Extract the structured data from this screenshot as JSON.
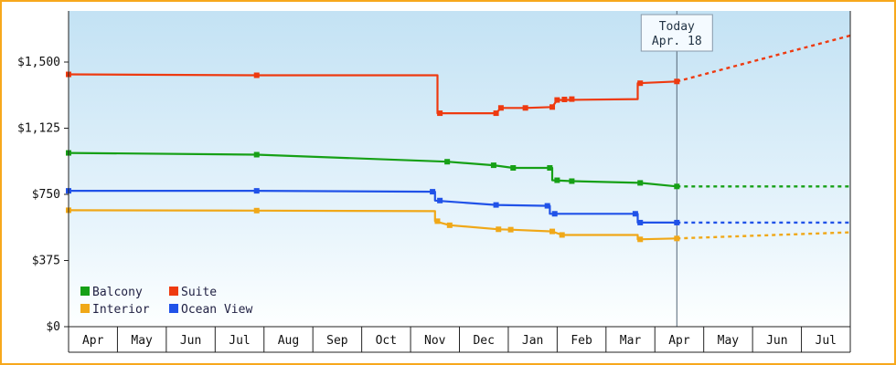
{
  "window": {
    "frame_border_color": "#f7a81c"
  },
  "chart_data": {
    "type": "line",
    "title": "",
    "xlabel": "",
    "ylabel": "",
    "x_months": [
      "Apr",
      "May",
      "Jun",
      "Jul",
      "Aug",
      "Sep",
      "Oct",
      "Nov",
      "Dec",
      "Jan",
      "Feb",
      "Mar",
      "Apr",
      "May",
      "Jun",
      "Jul"
    ],
    "x_month_count": 16,
    "y_ticks": [
      {
        "value": 0,
        "label": "$0"
      },
      {
        "value": 375,
        "label": "$375"
      },
      {
        "value": 750,
        "label": "$750"
      },
      {
        "value": 1125,
        "label": "$1,125"
      },
      {
        "value": 1500,
        "label": "$1,500"
      }
    ],
    "ylim": [
      0,
      1790
    ],
    "grid": false,
    "legend_position": "bottom-left-inside",
    "today_marker": {
      "line1": "Today",
      "line2": "Apr. 18",
      "month_position": 12.45
    },
    "series": [
      {
        "name": "Balcony",
        "color": "#16a016",
        "points": [
          [
            0,
            985
          ],
          [
            3.85,
            975
          ],
          [
            7.75,
            935
          ],
          [
            8.7,
            915
          ],
          [
            9.1,
            900
          ],
          [
            9.9,
            900
          ],
          [
            9.9,
            830
          ],
          [
            10.3,
            825
          ],
          [
            11.7,
            815
          ],
          [
            12.45,
            795
          ]
        ],
        "markers": [
          [
            0,
            985
          ],
          [
            3.85,
            975
          ],
          [
            7.75,
            935
          ],
          [
            8.7,
            915
          ],
          [
            9.1,
            900
          ],
          [
            9.85,
            900
          ],
          [
            10.0,
            830
          ],
          [
            10.3,
            825
          ],
          [
            11.7,
            815
          ],
          [
            12.45,
            795
          ]
        ],
        "projection": [
          [
            12.45,
            795
          ],
          [
            16,
            795
          ]
        ]
      },
      {
        "name": "Suite",
        "color": "#ee3a10",
        "points": [
          [
            0,
            1430
          ],
          [
            3.85,
            1425
          ],
          [
            7.55,
            1425
          ],
          [
            7.55,
            1210
          ],
          [
            8.75,
            1210
          ],
          [
            8.85,
            1240
          ],
          [
            9.35,
            1240
          ],
          [
            9.9,
            1245
          ],
          [
            10.0,
            1285
          ],
          [
            11.65,
            1290
          ],
          [
            11.65,
            1380
          ],
          [
            12.45,
            1390
          ]
        ],
        "markers": [
          [
            0,
            1430
          ],
          [
            3.85,
            1425
          ],
          [
            7.6,
            1210
          ],
          [
            8.75,
            1210
          ],
          [
            8.85,
            1240
          ],
          [
            9.35,
            1240
          ],
          [
            9.9,
            1245
          ],
          [
            10.0,
            1285
          ],
          [
            10.15,
            1288
          ],
          [
            10.3,
            1290
          ],
          [
            11.7,
            1380
          ],
          [
            12.45,
            1390
          ]
        ],
        "projection": [
          [
            12.45,
            1390
          ],
          [
            16,
            1650
          ]
        ]
      },
      {
        "name": "Interior",
        "color": "#f0a818",
        "points": [
          [
            0,
            660
          ],
          [
            3.85,
            658
          ],
          [
            7.5,
            655
          ],
          [
            7.5,
            598
          ],
          [
            7.8,
            575
          ],
          [
            8.8,
            552
          ],
          [
            9.05,
            550
          ],
          [
            9.9,
            540
          ],
          [
            10.1,
            520
          ],
          [
            11.65,
            520
          ],
          [
            11.65,
            495
          ],
          [
            12.45,
            500
          ]
        ],
        "markers": [
          [
            0,
            660
          ],
          [
            3.85,
            658
          ],
          [
            7.55,
            598
          ],
          [
            7.8,
            575
          ],
          [
            8.8,
            552
          ],
          [
            9.05,
            550
          ],
          [
            9.9,
            540
          ],
          [
            10.1,
            520
          ],
          [
            11.7,
            495
          ],
          [
            12.45,
            500
          ]
        ],
        "projection": [
          [
            12.45,
            500
          ],
          [
            16,
            535
          ]
        ]
      },
      {
        "name": "Ocean View",
        "color": "#2052e8",
        "points": [
          [
            0,
            770
          ],
          [
            3.85,
            770
          ],
          [
            7.5,
            765
          ],
          [
            7.5,
            715
          ],
          [
            8.75,
            690
          ],
          [
            9.85,
            685
          ],
          [
            9.85,
            640
          ],
          [
            11.65,
            640
          ],
          [
            11.65,
            590
          ],
          [
            12.45,
            590
          ]
        ],
        "markers": [
          [
            0,
            770
          ],
          [
            3.85,
            770
          ],
          [
            7.45,
            765
          ],
          [
            7.6,
            715
          ],
          [
            8.75,
            690
          ],
          [
            9.8,
            685
          ],
          [
            9.95,
            640
          ],
          [
            11.6,
            640
          ],
          [
            11.7,
            590
          ],
          [
            12.45,
            590
          ]
        ],
        "projection": [
          [
            12.45,
            590
          ],
          [
            16,
            590
          ]
        ]
      }
    ],
    "legend_items": [
      "Balcony",
      "Suite",
      "Interior",
      "Ocean View"
    ],
    "colors": {
      "plot_bg_top": "#c3e2f4",
      "plot_bg_bottom": "#fdffff",
      "axis": "#222222",
      "today_line": "#556677",
      "today_box_border": "#8899aa",
      "today_box_fill": "#f4faff",
      "label_text": "#111111",
      "legend_text": "#222244"
    }
  }
}
